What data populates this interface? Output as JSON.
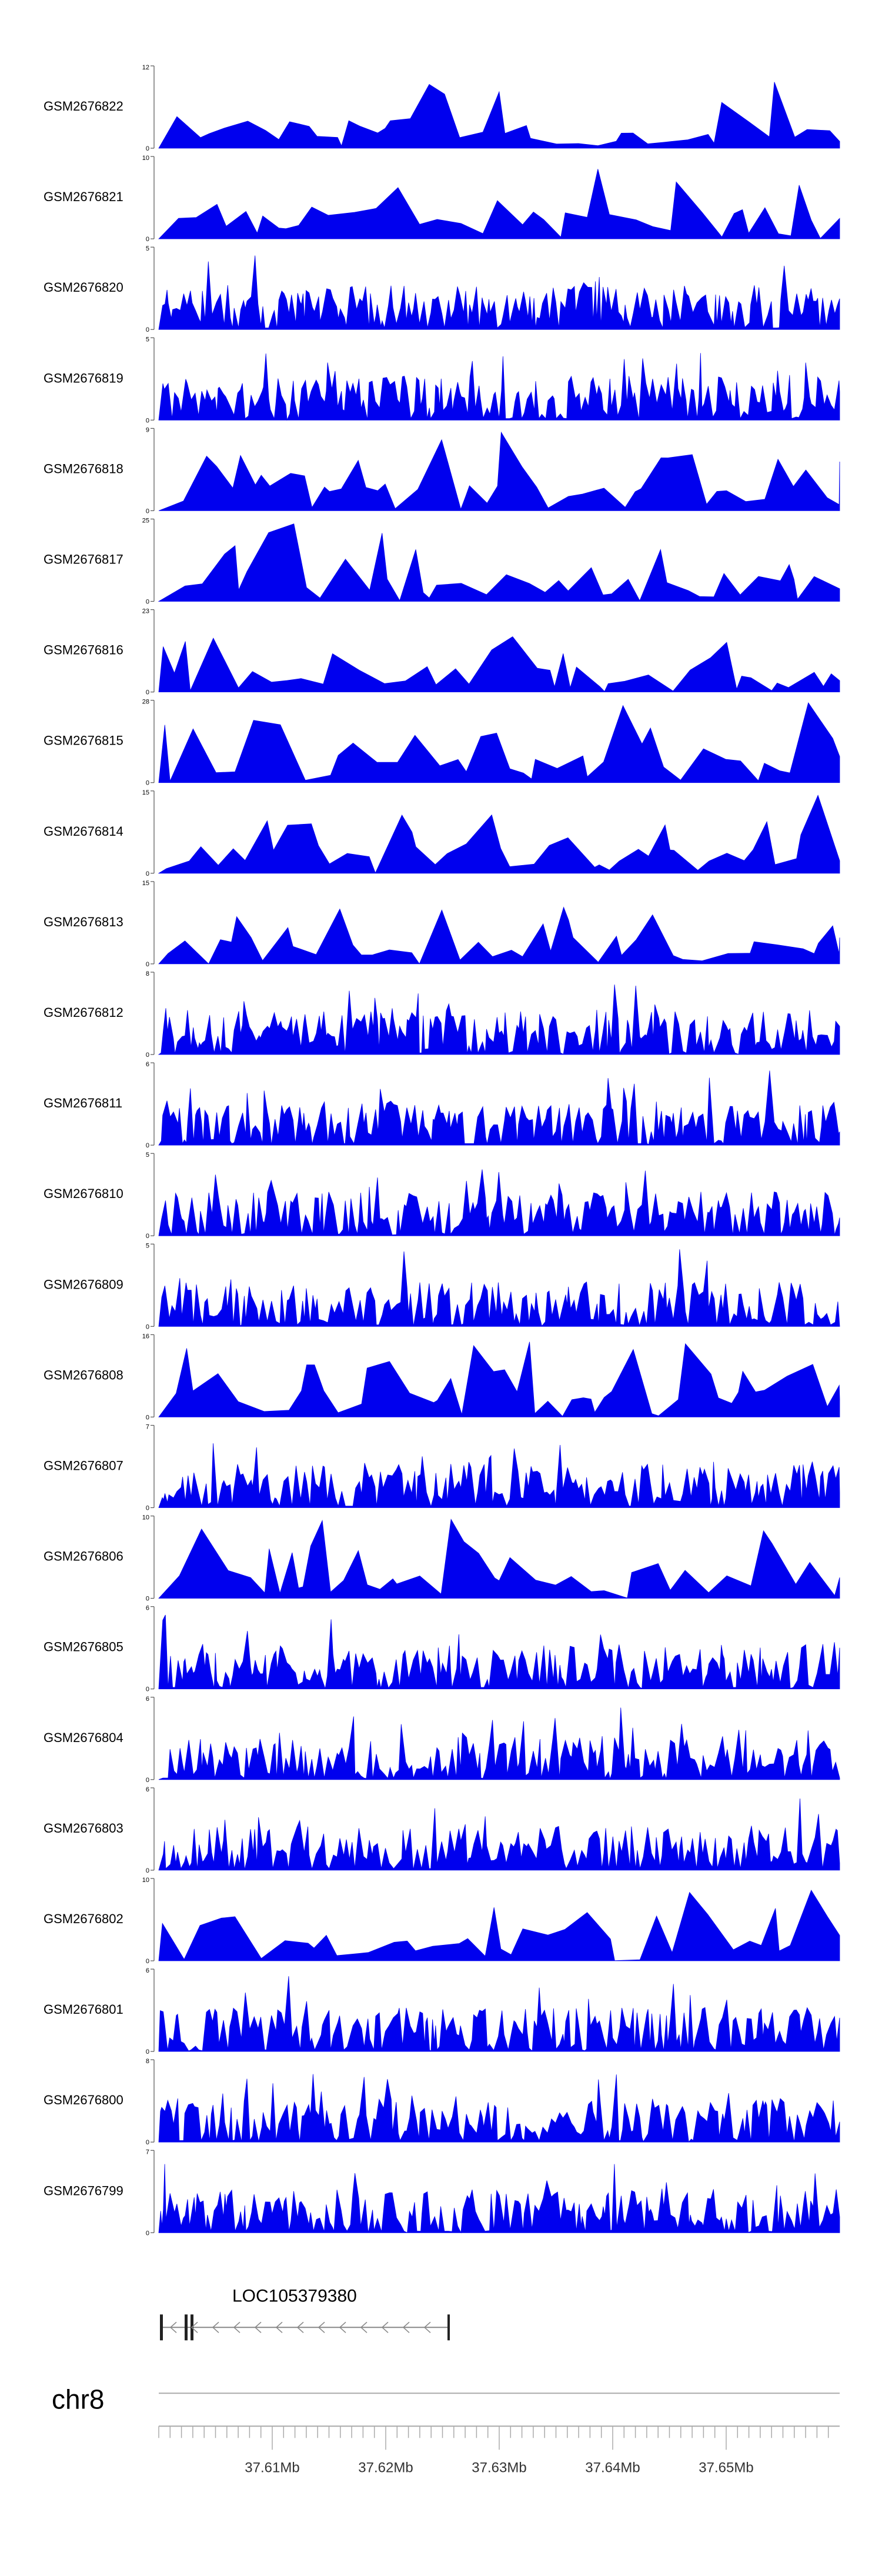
{
  "colors": {
    "track_fill": "#0000ee",
    "axis": "#555555",
    "gene": "#222222",
    "text": "#000000"
  },
  "chart_data": {
    "type": "area",
    "description_tracks": "coverage tracks",
    "x_range_mb": [
      37.6,
      37.66
    ],
    "tracks": [
      {
        "name": "GSM2676822",
        "ymax": 12
      },
      {
        "name": "GSM2676821",
        "ymax": 10
      },
      {
        "name": "GSM2676820",
        "ymax": 5
      },
      {
        "name": "GSM2676819",
        "ymax": 5
      },
      {
        "name": "GSM2676818",
        "ymax": 9
      },
      {
        "name": "GSM2676817",
        "ymax": 25
      },
      {
        "name": "GSM2676816",
        "ymax": 23
      },
      {
        "name": "GSM2676815",
        "ymax": 28
      },
      {
        "name": "GSM2676814",
        "ymax": 15
      },
      {
        "name": "GSM2676813",
        "ymax": 15
      },
      {
        "name": "GSM2676812",
        "ymax": 8
      },
      {
        "name": "GSM2676811",
        "ymax": 6
      },
      {
        "name": "GSM2676810",
        "ymax": 5
      },
      {
        "name": "GSM2676809",
        "ymax": 5
      },
      {
        "name": "GSM2676808",
        "ymax": 16
      },
      {
        "name": "GSM2676807",
        "ymax": 7
      },
      {
        "name": "GSM2676806",
        "ymax": 10
      },
      {
        "name": "GSM2676805",
        "ymax": 6
      },
      {
        "name": "GSM2676804",
        "ymax": 6
      },
      {
        "name": "GSM2676803",
        "ymax": 6
      },
      {
        "name": "GSM2676802",
        "ymax": 10
      },
      {
        "name": "GSM2676801",
        "ymax": 6
      },
      {
        "name": "GSM2676800",
        "ymax": 8
      },
      {
        "name": "GSM2676799",
        "ymax": 7
      }
    ],
    "y_min_label": "0",
    "gene": {
      "name": "LOC105379380",
      "strand": "-"
    },
    "chromosome": "chr8",
    "x_ticks": [
      "37.61Mb",
      "37.62Mb",
      "37.63Mb",
      "37.64Mb",
      "37.65Mb"
    ]
  }
}
